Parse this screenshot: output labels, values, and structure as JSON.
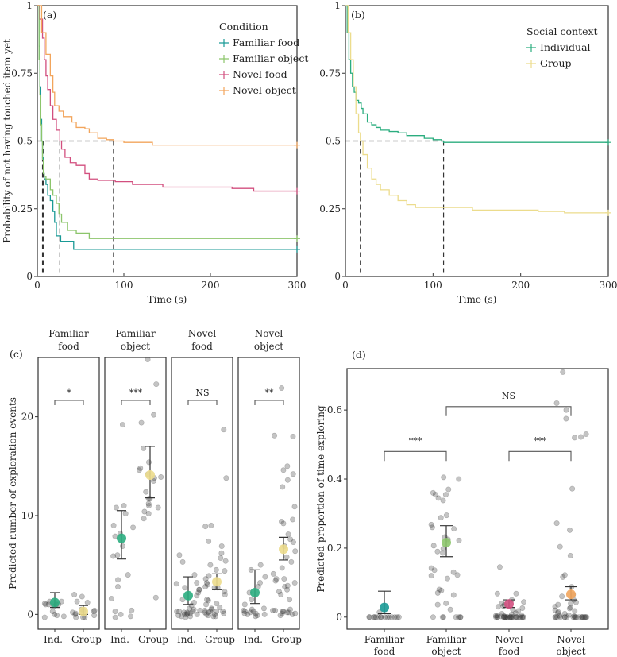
{
  "chart_data": [
    {
      "id": "a",
      "type": "line",
      "panel_label": "(a)",
      "title": "",
      "xlabel": "Time (s)",
      "ylabel": "Probability of not having touched item yet",
      "xlim": [
        0,
        300
      ],
      "ylim": [
        0,
        1
      ],
      "xticks": [
        0,
        100,
        200,
        300
      ],
      "yticks": [
        0,
        0.25,
        0.5,
        0.75,
        1
      ],
      "ytick_labels": [
        "0",
        "0.25",
        "0.5",
        "0.75",
        "1"
      ],
      "legend_title": "Condition",
      "legend_position": "top-right",
      "median_lines": [
        6,
        7,
        26,
        88
      ],
      "series": [
        {
          "name": "Familiar food",
          "color": "#1a9a96",
          "x": [
            0,
            2,
            3,
            4,
            5,
            6,
            7,
            8,
            10,
            12,
            15,
            18,
            20,
            22,
            27,
            30,
            42,
            300
          ],
          "y": [
            1,
            0.85,
            0.7,
            0.58,
            0.5,
            0.44,
            0.38,
            0.36,
            0.34,
            0.3,
            0.28,
            0.24,
            0.2,
            0.15,
            0.13,
            0.13,
            0.1,
            0.1
          ]
        },
        {
          "name": "Familiar object",
          "color": "#8cc56b",
          "x": [
            0,
            2,
            3,
            4,
            5,
            6,
            7,
            8,
            10,
            15,
            18,
            22,
            25,
            28,
            35,
            45,
            60,
            300
          ],
          "y": [
            1,
            0.8,
            0.67,
            0.56,
            0.5,
            0.43,
            0.38,
            0.37,
            0.36,
            0.32,
            0.3,
            0.27,
            0.23,
            0.2,
            0.17,
            0.16,
            0.14,
            0.14
          ]
        },
        {
          "name": "Novel food",
          "color": "#d24f7f",
          "x": [
            0,
            3,
            6,
            8,
            10,
            12,
            15,
            18,
            22,
            26,
            28,
            32,
            38,
            45,
            55,
            60,
            70,
            90,
            110,
            145,
            225,
            250,
            300
          ],
          "y": [
            1,
            0.95,
            0.88,
            0.8,
            0.74,
            0.69,
            0.63,
            0.58,
            0.54,
            0.5,
            0.47,
            0.44,
            0.42,
            0.41,
            0.38,
            0.36,
            0.355,
            0.35,
            0.34,
            0.33,
            0.325,
            0.315,
            0.315
          ]
        },
        {
          "name": "Novel object",
          "color": "#f2a55c",
          "x": [
            0,
            5,
            10,
            15,
            18,
            20,
            25,
            30,
            40,
            45,
            55,
            60,
            70,
            80,
            88,
            100,
            133,
            300
          ],
          "y": [
            1,
            0.9,
            0.82,
            0.74,
            0.68,
            0.63,
            0.61,
            0.59,
            0.57,
            0.55,
            0.545,
            0.53,
            0.51,
            0.505,
            0.5,
            0.495,
            0.485,
            0.485
          ]
        }
      ],
      "censor_marks": [
        {
          "series": "Familiar food",
          "x": 300,
          "y": 0.1
        },
        {
          "series": "Familiar object",
          "x": 300,
          "y": 0.14
        },
        {
          "series": "Novel food",
          "x": 300,
          "y": 0.315
        },
        {
          "series": "Novel object",
          "x": 300,
          "y": 0.485
        }
      ]
    },
    {
      "id": "b",
      "type": "line",
      "panel_label": "(b)",
      "title": "",
      "xlabel": "Time (s)",
      "ylabel": "",
      "xlim": [
        0,
        300
      ],
      "ylim": [
        0,
        1
      ],
      "xticks": [
        0,
        100,
        200,
        300
      ],
      "yticks": [
        0,
        0.25,
        0.5,
        0.75,
        1
      ],
      "ytick_labels": [
        "0",
        "0.25",
        "0.5",
        "0.75",
        "1"
      ],
      "legend_title": "Social context",
      "legend_position": "top-right",
      "median_lines": [
        17,
        112
      ],
      "series": [
        {
          "name": "Individual",
          "color": "#2bad7f",
          "x": [
            0,
            2,
            4,
            6,
            8,
            10,
            12,
            15,
            18,
            20,
            25,
            30,
            35,
            40,
            50,
            60,
            70,
            90,
            100,
            110,
            112,
            300
          ],
          "y": [
            1,
            0.9,
            0.8,
            0.75,
            0.7,
            0.68,
            0.65,
            0.64,
            0.62,
            0.6,
            0.57,
            0.56,
            0.55,
            0.54,
            0.535,
            0.53,
            0.52,
            0.51,
            0.505,
            0.5,
            0.495,
            0.495
          ]
        },
        {
          "name": "Group",
          "color": "#ecdc8c",
          "x": [
            0,
            3,
            6,
            9,
            12,
            15,
            17,
            20,
            25,
            30,
            35,
            40,
            50,
            60,
            70,
            80,
            110,
            145,
            220,
            250,
            300
          ],
          "y": [
            1,
            0.9,
            0.8,
            0.7,
            0.6,
            0.53,
            0.5,
            0.45,
            0.4,
            0.36,
            0.34,
            0.32,
            0.3,
            0.28,
            0.265,
            0.255,
            0.255,
            0.245,
            0.24,
            0.235,
            0.235
          ]
        }
      ]
    },
    {
      "id": "c",
      "type": "scatter",
      "panel_label": "(c)",
      "ylabel": "Predicted number of exploration events",
      "ylim": [
        -1.5,
        26
      ],
      "yticks": [
        0,
        10,
        20
      ],
      "facets": [
        {
          "title": "Familiar food",
          "significance": "*",
          "groups": [
            {
              "name": "Ind.",
              "mean": 1.2,
              "ci": [
                0.7,
                2.2
              ],
              "color": "#2bad7f",
              "points": [
                0,
                1,
                1,
                1,
                0.8,
                1.2,
                1.1,
                -0.2,
                -0.1,
                0.3,
                1.3,
                1.3,
                1,
                -0.3
              ]
            },
            {
              "name": "Group",
              "mean": 0.3,
              "ci": [
                0,
                0.9
              ],
              "color": "#ecdc8c",
              "points": [
                0.4,
                1.3,
                1.2,
                0,
                -0.3,
                -0.3,
                0.1,
                0.2,
                0.3,
                0.4,
                2,
                1.8,
                -0.1,
                -0.3,
                0.5
              ]
            }
          ]
        },
        {
          "title": "Familiar object",
          "significance": "***",
          "groups": [
            {
              "name": "Ind.",
              "mean": 7.7,
              "ci": [
                5.6,
                10.5
              ],
              "color": "#2bad7f",
              "points": [
                19.2,
                10.2,
                10.8,
                9,
                8.8,
                8.2,
                7.9,
                6.9,
                6,
                5.9,
                4,
                3.5,
                2.8,
                1.6,
                0.4,
                -0.3,
                -0.2,
                0,
                0.3,
                11
              ]
            },
            {
              "name": "Group",
              "mean": 14.1,
              "ci": [
                11.8,
                17
              ],
              "color": "#ecdc8c",
              "points": [
                25.8,
                23.3,
                20.2,
                19.4,
                16.8,
                15.4,
                14.8,
                14.6,
                14.2,
                13.8,
                13.5,
                13.9,
                12.4,
                11.7,
                11.7,
                11.2,
                10.8,
                11,
                10.2,
                10.4,
                9.7,
                1.7
              ]
            }
          ]
        },
        {
          "title": "Novel food",
          "significance": "NS",
          "groups": [
            {
              "name": "Ind.",
              "mean": 1.9,
              "ci": [
                1,
                3.8
              ],
              "color": "#2bad7f",
              "points": [
                6,
                5.3,
                4,
                3.2,
                2.5,
                2.2,
                1.9,
                1.2,
                0.9,
                0.6,
                0.3,
                0.2,
                0,
                -0.2,
                -0.3,
                0.3,
                0.5,
                1.5,
                2.5,
                3.1,
                2.7,
                0.1,
                0,
                -0.1,
                0.4,
                0.2,
                0,
                -0.2,
                0.1,
                0.3
              ]
            },
            {
              "name": "Group",
              "mean": 3.3,
              "ci": [
                2.5,
                4.1
              ],
              "color": "#ecdc8c",
              "points": [
                18.7,
                13.8,
                9,
                8.9,
                7.4,
                6.9,
                6.2,
                5.7,
                5.4,
                5,
                4.4,
                3.9,
                3.6,
                3.2,
                2.8,
                2.7,
                2.3,
                2,
                1.4,
                1.1,
                1,
                0.6,
                0.3,
                0,
                -0.2,
                0.3,
                0.5,
                0.1,
                -0.1,
                0.2,
                0.4,
                0.7,
                1.5,
                2.7,
                3,
                4.5,
                0,
                0.2,
                0.3,
                -0.2
              ]
            }
          ]
        },
        {
          "title": "Novel object",
          "significance": "**",
          "groups": [
            {
              "name": "Ind.",
              "mean": 2.2,
              "ci": [
                1.1,
                4.5
              ],
              "color": "#2bad7f",
              "points": [
                5,
                4.5,
                3.8,
                3.2,
                2.8,
                2.2,
                1.5,
                1,
                0.6,
                0.3,
                0.1,
                0,
                0.2,
                0.4,
                -0.1,
                0.3,
                0.5,
                0.1,
                0,
                -0.2
              ]
            },
            {
              "name": "Group",
              "mean": 6.6,
              "ci": [
                5.5,
                7.8
              ],
              "color": "#ecdc8c",
              "points": [
                22.9,
                18.1,
                18,
                15,
                14.6,
                14.2,
                13.6,
                12.9,
                10.9,
                9.6,
                9.4,
                9.2,
                8.1,
                7.6,
                7.3,
                6.9,
                6.4,
                5.8,
                5.3,
                4.7,
                4.1,
                3.2,
                2.8,
                2.5,
                2,
                1.5,
                0.5,
                0.3,
                0.1,
                0,
                0.2,
                0.4,
                -0.1,
                0.3,
                0.1,
                0.2,
                0.4,
                2.9,
                3.4,
                3.6,
                3.6,
                2.3
              ]
            }
          ]
        }
      ]
    },
    {
      "id": "d",
      "type": "scatter",
      "panel_label": "(d)",
      "ylabel": "Predicted proportion of time exploring",
      "ylim": [
        -0.035,
        0.72
      ],
      "yticks": [
        0,
        0.2,
        0.4,
        0.6
      ],
      "ytick_labels": [
        "0",
        "0.2",
        "0.4",
        "0.6"
      ],
      "categories": [
        "Familiar food",
        "Familiar object",
        "Novel food",
        "Novel object"
      ],
      "significance": [
        {
          "from": "Familiar food",
          "to": "Familiar object",
          "label": "***"
        },
        {
          "from": "Novel food",
          "to": "Novel object",
          "label": "***"
        },
        {
          "from": "Familiar object",
          "to": "Novel object",
          "label": "NS"
        }
      ],
      "groups": [
        {
          "name": "Familiar food",
          "mean": 0.028,
          "ci": [
            0.01,
            0.075
          ],
          "color": "#1a9a96",
          "points": [
            0,
            0,
            0,
            0,
            0,
            0,
            0,
            0,
            0,
            0,
            0,
            0,
            0,
            0,
            0,
            0.014
          ]
        },
        {
          "name": "Familiar object",
          "mean": 0.216,
          "ci": [
            0.175,
            0.265
          ],
          "color": "#8cc56b",
          "points": [
            0.405,
            0.4,
            0.37,
            0.36,
            0.355,
            0.355,
            0.345,
            0.338,
            0.295,
            0.288,
            0.268,
            0.26,
            0.256,
            0.232,
            0.225,
            0.222,
            0.207,
            0.198,
            0.19,
            0.186,
            0.142,
            0.136,
            0.13,
            0.122,
            0.12,
            0.112,
            0.08,
            0.077,
            0.07,
            0.064,
            0.04,
            0.036,
            0.022,
            0,
            0,
            0,
            0,
            0,
            0,
            0
          ]
        },
        {
          "name": "Novel food",
          "mean": 0.038,
          "ci": [
            0.028,
            0.05
          ],
          "color": "#d24f7f",
          "points": [
            0.145,
            0.068,
            0.068,
            0.05,
            0.044,
            0.04,
            0.035,
            0.032,
            0.03,
            0.026,
            0.022,
            0.018,
            0.012,
            0.01,
            0.008,
            0.005,
            0,
            0,
            0,
            0,
            0,
            0,
            0,
            0,
            0,
            0,
            0,
            0,
            0,
            0,
            0,
            0,
            0,
            0,
            0,
            0,
            0,
            0,
            0,
            0,
            0.004,
            0.006,
            0.003,
            0.002
          ]
        },
        {
          "name": "Novel object",
          "mean": 0.066,
          "ci": [
            0.05,
            0.088
          ],
          "color": "#f2a55c",
          "points": [
            0.71,
            0.62,
            0.6,
            0.575,
            0.53,
            0.522,
            0.52,
            0.372,
            0.272,
            0.252,
            0.204,
            0.178,
            0.122,
            0.116,
            0.088,
            0.065,
            0.06,
            0.05,
            0.043,
            0.04,
            0.036,
            0.03,
            0.028,
            0.025,
            0.02,
            0.018,
            0.015,
            0.012,
            0.01,
            0.006,
            0,
            0,
            0,
            0,
            0,
            0,
            0,
            0,
            0,
            0,
            0,
            0,
            0,
            0,
            0,
            0,
            0,
            0,
            0,
            0.003,
            0.004
          ]
        }
      ]
    }
  ],
  "facet_xtick_labels": [
    "Ind.",
    "Group"
  ],
  "time_xlabel": "Time (s)"
}
